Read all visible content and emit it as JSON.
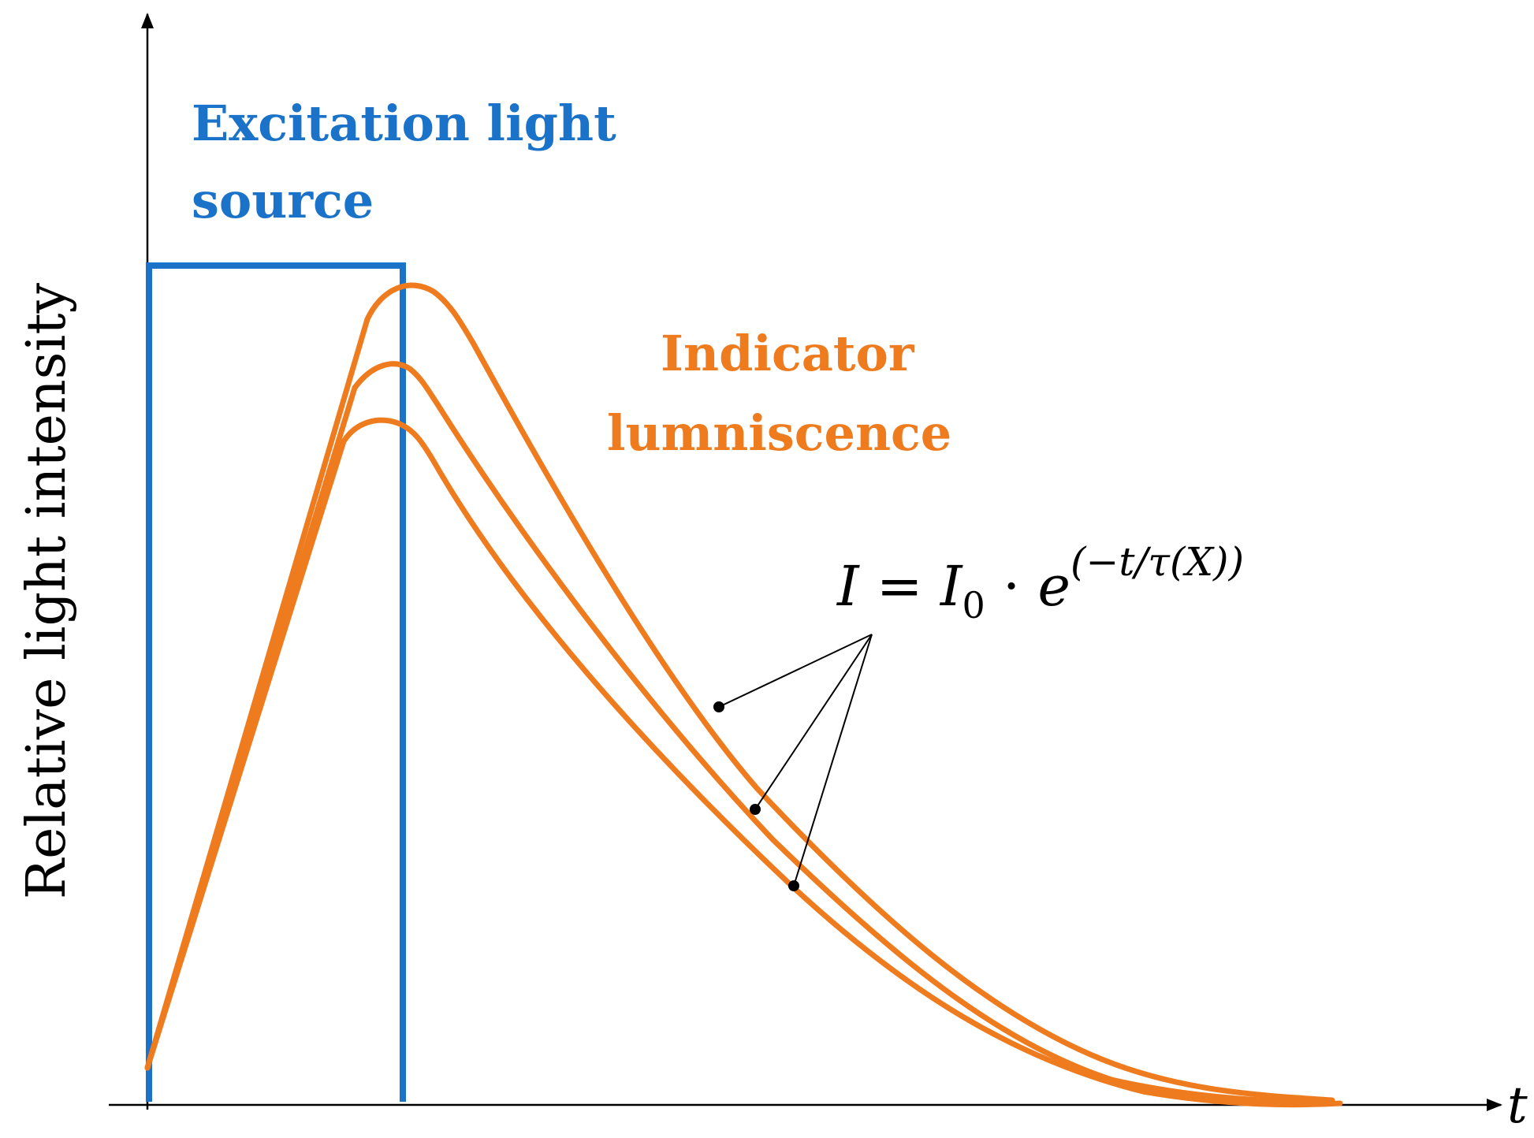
{
  "axes": {
    "y_title": "Relative light intensity",
    "x_symbol": "t"
  },
  "labels": {
    "excitation_line1": "Excitation light",
    "excitation_line2": "source",
    "indicator_line1": "Indicator",
    "indicator_line2": "lumniscence"
  },
  "formula": {
    "lhs": "I",
    "eq": " = ",
    "base": "I",
    "sub": "0",
    "dot": " · ",
    "exp_base": "e",
    "exponent": "(−t/τ(X))"
  },
  "colors": {
    "excitation": "#1a73c8",
    "luminescence": "#ef7b1f",
    "axis": "#000000"
  }
}
